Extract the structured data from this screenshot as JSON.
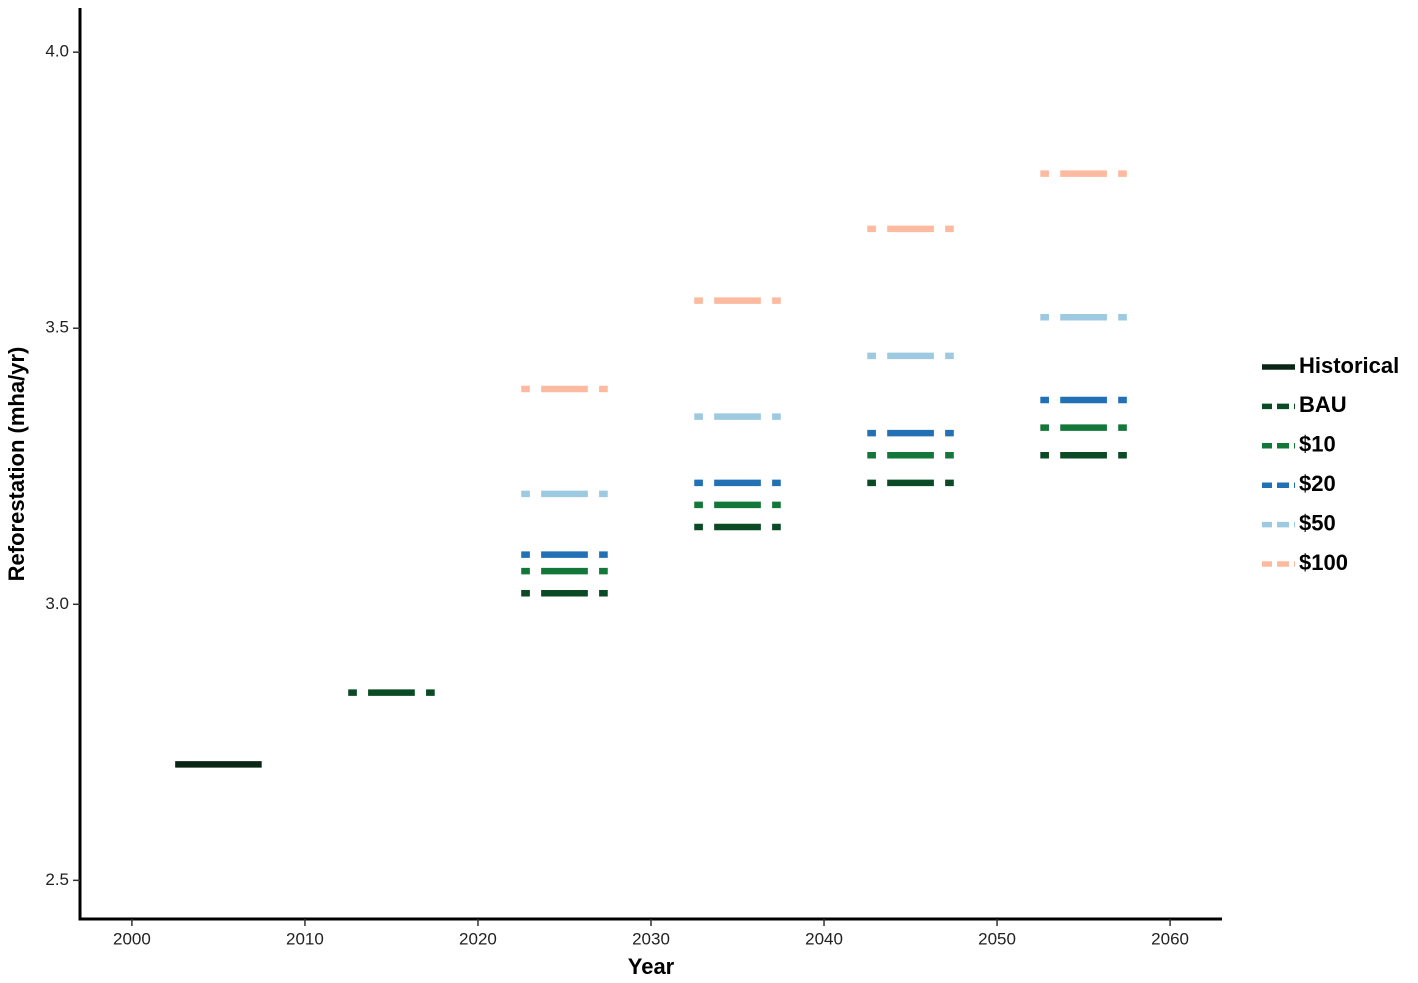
{
  "chart_data": {
    "type": "segment",
    "x_label": "Year",
    "y_label": "Reforestation (mha/yr)",
    "x_start": [
      2002.5,
      2012.5,
      2022.5,
      2032.5,
      2042.5,
      2052.5
    ],
    "x_end": [
      2007.5,
      2017.5,
      2027.5,
      2037.5,
      2047.5,
      2057.5
    ],
    "series": [
      {
        "name": "Historical",
        "color": "#0b2515",
        "dashed": false,
        "values": [
          2.71,
          null,
          null,
          null,
          null,
          null
        ]
      },
      {
        "name": "BAU",
        "color": "#0a4a25",
        "dashed": true,
        "values": [
          null,
          2.84,
          3.02,
          3.14,
          3.22,
          3.27
        ]
      },
      {
        "name": "$10",
        "color": "#13773a",
        "dashed": true,
        "values": [
          null,
          null,
          3.06,
          3.18,
          3.27,
          3.32
        ]
      },
      {
        "name": "$20",
        "color": "#2271b5",
        "dashed": true,
        "values": [
          null,
          null,
          3.09,
          3.22,
          3.31,
          3.37
        ]
      },
      {
        "name": "$50",
        "color": "#9ecae1",
        "dashed": true,
        "values": [
          null,
          null,
          3.2,
          3.34,
          3.45,
          3.52
        ]
      },
      {
        "name": "$100",
        "color": "#fcbba1",
        "dashed": true,
        "values": [
          null,
          null,
          3.39,
          3.55,
          3.68,
          3.78
        ]
      }
    ],
    "xlim": [
      1997,
      2063
    ],
    "xticks": [
      2000,
      2010,
      2020,
      2030,
      2040,
      2050,
      2060
    ],
    "ylim": [
      2.43,
      4.08
    ],
    "yticks": [
      {
        "value": 2.5,
        "label": "2.5"
      },
      {
        "value": 3,
        "label": "3.0"
      },
      {
        "value": 3.5,
        "label": "3.5"
      },
      {
        "value": 4,
        "label": "4.0"
      }
    ],
    "legend": "right"
  }
}
